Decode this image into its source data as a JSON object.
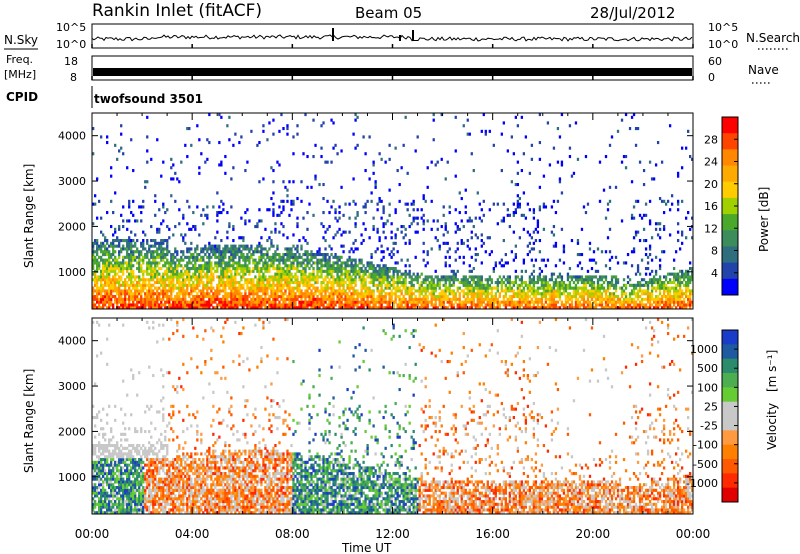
{
  "header": {
    "station": "Rankin Inlet (fitACF)",
    "beam": "Beam 05",
    "date": "28/Jul/2012"
  },
  "top_panels": {
    "nsky_label": "N.Sky",
    "nsearch_label": "N.Search",
    "noise_ticks": [
      "10^5",
      "10^0"
    ],
    "freq_label": "Freq.",
    "freq_unit": "[MHz]",
    "freq_ticks": [
      "18",
      "8"
    ],
    "nave_label": "Nave",
    "nave_ticks": [
      "60",
      "0"
    ],
    "cpid_label": "CPID",
    "cpid_value": "twofsound 3501"
  },
  "chart_data": [
    {
      "type": "heatmap",
      "name": "power",
      "ylabel": "Slant Range [km]",
      "xlabel": "Time UT",
      "x_ticks": [
        "00:00",
        "04:00",
        "08:00",
        "12:00",
        "16:00",
        "20:00",
        "00:00"
      ],
      "xlim_hours": [
        0,
        24
      ],
      "y_ticks": [
        1000,
        2000,
        3000,
        4000
      ],
      "ylim_km": [
        180,
        4500
      ],
      "colorbar_label": "Power [dB]",
      "colorbar_ticks": [
        "28",
        "24",
        "20",
        "16",
        "12",
        "8",
        "4"
      ],
      "colorbar_colors": [
        "#ff0000",
        "#ff4400",
        "#ff8800",
        "#ffaa00",
        "#ffcc00",
        "#a0d000",
        "#4aa82a",
        "#3c8c5c",
        "#2e6e7e",
        "#2244aa",
        "#0000ff"
      ]
    },
    {
      "type": "heatmap",
      "name": "velocity",
      "ylabel": "Slant Range [km]",
      "xlabel": "Time UT",
      "x_ticks": [
        "00:00",
        "04:00",
        "08:00",
        "12:00",
        "16:00",
        "20:00",
        "00:00"
      ],
      "xlim_hours": [
        0,
        24
      ],
      "y_ticks": [
        1000,
        2000,
        3000,
        4000
      ],
      "ylim_km": [
        180,
        4500
      ],
      "colorbar_label": "Velocity",
      "colorbar_unit": "[m s⁻¹]",
      "colorbar_ticks": [
        "1000",
        "500",
        "100",
        "25",
        "-25",
        "-100",
        "-500",
        "-1000"
      ],
      "colorbar_colors": [
        "#1a3cc8",
        "#1e5aa0",
        "#2a8c6a",
        "#4cae50",
        "#66cc33",
        "#c8c8c8",
        "#c8c8c8",
        "#ff9a40",
        "#ff8000",
        "#ff5a00",
        "#ff2a00",
        "#e00000"
      ]
    }
  ],
  "xlabel": "Time UT"
}
